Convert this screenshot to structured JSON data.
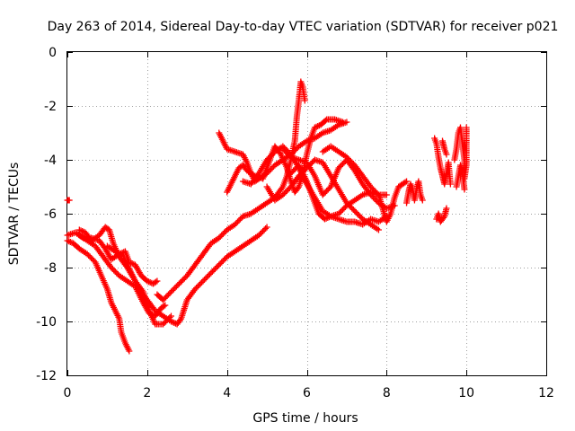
{
  "chart_data": {
    "type": "scatter",
    "title": "Day 263 of 2014, Sidereal Day-to-day VTEC variation (SDTVAR) for receiver p021",
    "xlabel": "GPS time / hours",
    "ylabel": "SDTVAR / TECUs",
    "xlim": [
      0,
      12
    ],
    "ylim": [
      -12,
      0
    ],
    "xticks": [
      0,
      2,
      4,
      6,
      8,
      10,
      12
    ],
    "yticks": [
      0,
      -2,
      -4,
      -6,
      -8,
      -10,
      -12
    ],
    "grid": true,
    "marker": "plus",
    "color": "#ff0000",
    "series": [
      {
        "points": [
          [
            0.0,
            -5.5
          ],
          [
            0.05,
            -5.5
          ]
        ]
      },
      {
        "points": [
          [
            0.0,
            -6.8
          ],
          [
            0.2,
            -6.7
          ],
          [
            0.4,
            -6.9
          ],
          [
            0.6,
            -6.9
          ],
          [
            0.8,
            -7.0
          ],
          [
            0.95,
            -7.3
          ],
          [
            1.1,
            -7.7
          ],
          [
            1.3,
            -7.5
          ],
          [
            1.45,
            -7.4
          ],
          [
            1.55,
            -7.8
          ],
          [
            1.7,
            -7.9
          ],
          [
            1.85,
            -8.3
          ],
          [
            2.0,
            -8.5
          ],
          [
            2.15,
            -8.6
          ],
          [
            2.25,
            -8.5
          ]
        ]
      },
      {
        "points": [
          [
            0.0,
            -7.0
          ],
          [
            0.15,
            -7.1
          ],
          [
            0.3,
            -7.3
          ],
          [
            0.5,
            -7.5
          ],
          [
            0.7,
            -7.8
          ],
          [
            0.85,
            -8.3
          ],
          [
            1.0,
            -8.8
          ],
          [
            1.1,
            -9.3
          ],
          [
            1.2,
            -9.6
          ],
          [
            1.3,
            -9.9
          ],
          [
            1.35,
            -10.4
          ],
          [
            1.45,
            -10.8
          ],
          [
            1.55,
            -11.1
          ]
        ]
      },
      {
        "points": [
          [
            0.3,
            -6.8
          ],
          [
            0.5,
            -7.0
          ],
          [
            0.7,
            -7.2
          ],
          [
            0.9,
            -7.6
          ],
          [
            1.1,
            -8.0
          ],
          [
            1.3,
            -8.3
          ],
          [
            1.5,
            -8.5
          ],
          [
            1.7,
            -8.7
          ],
          [
            1.9,
            -9.3
          ],
          [
            2.05,
            -9.7
          ],
          [
            2.2,
            -9.8
          ],
          [
            2.35,
            -9.5
          ],
          [
            2.45,
            -9.4
          ]
        ]
      },
      {
        "points": [
          [
            0.3,
            -6.6
          ],
          [
            0.45,
            -6.7
          ],
          [
            0.6,
            -7.0
          ],
          [
            0.8,
            -6.8
          ],
          [
            0.95,
            -6.5
          ],
          [
            1.05,
            -6.6
          ],
          [
            1.15,
            -7.1
          ],
          [
            1.3,
            -7.6
          ],
          [
            1.5,
            -8.0
          ],
          [
            1.7,
            -8.5
          ],
          [
            1.9,
            -8.9
          ],
          [
            2.05,
            -9.6
          ],
          [
            2.2,
            -10.1
          ],
          [
            2.4,
            -10.1
          ],
          [
            2.6,
            -9.8
          ]
        ]
      },
      {
        "points": [
          [
            1.0,
            -7.2
          ],
          [
            1.2,
            -7.4
          ],
          [
            1.4,
            -7.6
          ],
          [
            1.6,
            -8.2
          ],
          [
            1.8,
            -8.8
          ],
          [
            2.0,
            -9.2
          ],
          [
            2.2,
            -9.6
          ],
          [
            2.4,
            -9.8
          ],
          [
            2.6,
            -10.0
          ],
          [
            2.75,
            -10.1
          ],
          [
            2.85,
            -9.9
          ],
          [
            3.0,
            -9.2
          ],
          [
            3.2,
            -8.8
          ],
          [
            3.4,
            -8.5
          ],
          [
            3.6,
            -8.2
          ],
          [
            3.8,
            -7.9
          ],
          [
            4.0,
            -7.6
          ],
          [
            4.2,
            -7.4
          ],
          [
            4.4,
            -7.2
          ],
          [
            4.6,
            -7.0
          ],
          [
            4.8,
            -6.8
          ],
          [
            5.0,
            -6.5
          ]
        ]
      },
      {
        "points": [
          [
            2.25,
            -9.0
          ],
          [
            2.4,
            -9.2
          ],
          [
            2.6,
            -8.9
          ],
          [
            2.8,
            -8.6
          ],
          [
            3.0,
            -8.3
          ],
          [
            3.2,
            -7.9
          ],
          [
            3.4,
            -7.5
          ],
          [
            3.6,
            -7.1
          ],
          [
            3.8,
            -6.9
          ],
          [
            4.0,
            -6.6
          ],
          [
            4.2,
            -6.4
          ],
          [
            4.4,
            -6.1
          ],
          [
            4.6,
            -6.0
          ],
          [
            4.8,
            -5.8
          ],
          [
            5.0,
            -5.6
          ],
          [
            5.2,
            -5.4
          ],
          [
            5.4,
            -5.0
          ],
          [
            5.5,
            -4.6
          ],
          [
            5.6,
            -4.0
          ],
          [
            5.7,
            -3.3
          ],
          [
            5.75,
            -2.4
          ],
          [
            5.8,
            -1.8
          ],
          [
            5.85,
            -1.1
          ],
          [
            5.9,
            -1.3
          ],
          [
            5.95,
            -1.8
          ]
        ]
      },
      {
        "points": [
          [
            3.8,
            -3.0
          ],
          [
            3.9,
            -3.3
          ],
          [
            4.0,
            -3.6
          ],
          [
            4.2,
            -3.7
          ],
          [
            4.4,
            -3.8
          ],
          [
            4.5,
            -4.1
          ],
          [
            4.6,
            -4.5
          ],
          [
            4.7,
            -4.8
          ],
          [
            4.8,
            -4.7
          ],
          [
            5.0,
            -4.5
          ],
          [
            5.2,
            -4.2
          ],
          [
            5.4,
            -4.0
          ],
          [
            5.6,
            -3.8
          ],
          [
            5.8,
            -3.5
          ],
          [
            6.0,
            -3.3
          ],
          [
            6.2,
            -3.2
          ],
          [
            6.4,
            -3.0
          ],
          [
            6.6,
            -2.9
          ],
          [
            6.8,
            -2.7
          ],
          [
            7.0,
            -2.6
          ]
        ]
      },
      {
        "points": [
          [
            4.0,
            -5.2
          ],
          [
            4.1,
            -4.9
          ],
          [
            4.2,
            -4.6
          ],
          [
            4.3,
            -4.3
          ],
          [
            4.4,
            -4.2
          ],
          [
            4.5,
            -4.4
          ],
          [
            4.7,
            -4.6
          ],
          [
            4.9,
            -4.7
          ],
          [
            5.0,
            -4.3
          ],
          [
            5.1,
            -3.9
          ],
          [
            5.2,
            -3.5
          ],
          [
            5.35,
            -3.8
          ],
          [
            5.5,
            -4.3
          ],
          [
            5.6,
            -4.8
          ],
          [
            5.7,
            -5.2
          ],
          [
            5.8,
            -5.0
          ],
          [
            5.9,
            -4.5
          ],
          [
            6.0,
            -3.8
          ],
          [
            6.1,
            -3.2
          ],
          [
            6.2,
            -2.8
          ],
          [
            6.35,
            -2.7
          ],
          [
            6.5,
            -2.5
          ],
          [
            6.7,
            -2.5
          ],
          [
            6.9,
            -2.6
          ]
        ]
      },
      {
        "points": [
          [
            4.4,
            -4.8
          ],
          [
            4.6,
            -4.9
          ],
          [
            4.8,
            -4.5
          ],
          [
            5.0,
            -4.0
          ],
          [
            5.2,
            -3.7
          ],
          [
            5.4,
            -3.5
          ],
          [
            5.6,
            -3.8
          ],
          [
            5.8,
            -4.3
          ],
          [
            6.0,
            -4.9
          ],
          [
            6.2,
            -5.4
          ],
          [
            6.4,
            -5.9
          ],
          [
            6.6,
            -6.1
          ],
          [
            6.8,
            -6.2
          ],
          [
            7.0,
            -6.3
          ],
          [
            7.2,
            -6.3
          ],
          [
            7.4,
            -6.4
          ],
          [
            7.6,
            -6.2
          ],
          [
            7.8,
            -6.3
          ],
          [
            8.0,
            -6.1
          ]
        ]
      },
      {
        "points": [
          [
            5.0,
            -5.0
          ],
          [
            5.2,
            -5.5
          ],
          [
            5.4,
            -5.3
          ],
          [
            5.6,
            -5.0
          ],
          [
            5.8,
            -4.6
          ],
          [
            6.0,
            -4.3
          ],
          [
            6.2,
            -4.0
          ],
          [
            6.4,
            -4.1
          ],
          [
            6.6,
            -4.6
          ],
          [
            6.8,
            -5.1
          ],
          [
            7.0,
            -5.6
          ],
          [
            7.2,
            -5.9
          ],
          [
            7.4,
            -6.2
          ],
          [
            7.6,
            -6.4
          ],
          [
            7.8,
            -6.6
          ]
        ]
      },
      {
        "points": [
          [
            5.6,
            -4.5
          ],
          [
            5.8,
            -4.2
          ],
          [
            6.0,
            -4.8
          ],
          [
            6.2,
            -5.6
          ],
          [
            6.3,
            -6.0
          ],
          [
            6.45,
            -6.2
          ],
          [
            6.6,
            -6.1
          ],
          [
            6.8,
            -6.0
          ],
          [
            7.0,
            -5.7
          ],
          [
            7.2,
            -5.5
          ],
          [
            7.4,
            -5.3
          ],
          [
            7.6,
            -5.2
          ],
          [
            7.8,
            -5.3
          ],
          [
            8.0,
            -5.3
          ]
        ]
      },
      {
        "points": [
          [
            5.4,
            -3.6
          ],
          [
            5.6,
            -3.9
          ],
          [
            5.8,
            -4.0
          ],
          [
            6.0,
            -4.1
          ],
          [
            6.2,
            -4.6
          ],
          [
            6.4,
            -5.3
          ],
          [
            6.6,
            -5.0
          ],
          [
            6.8,
            -4.3
          ],
          [
            7.0,
            -4.0
          ],
          [
            7.2,
            -4.4
          ],
          [
            7.4,
            -4.9
          ],
          [
            7.6,
            -5.3
          ],
          [
            7.8,
            -5.6
          ],
          [
            8.0,
            -5.8
          ],
          [
            8.2,
            -5.7
          ]
        ]
      },
      {
        "points": [
          [
            6.4,
            -3.7
          ],
          [
            6.6,
            -3.5
          ],
          [
            6.8,
            -3.7
          ],
          [
            7.0,
            -3.9
          ],
          [
            7.2,
            -4.2
          ],
          [
            7.4,
            -4.6
          ],
          [
            7.6,
            -5.0
          ],
          [
            7.8,
            -5.3
          ],
          [
            7.9,
            -5.8
          ],
          [
            8.0,
            -6.3
          ],
          [
            8.1,
            -6.0
          ],
          [
            8.2,
            -5.4
          ],
          [
            8.3,
            -5.0
          ],
          [
            8.4,
            -4.9
          ],
          [
            8.5,
            -4.8
          ]
        ]
      },
      {
        "points": [
          [
            8.5,
            -5.6
          ],
          [
            8.55,
            -5.2
          ],
          [
            8.6,
            -4.9
          ],
          [
            8.65,
            -5.1
          ],
          [
            8.7,
            -5.5
          ],
          [
            8.75,
            -5.1
          ],
          [
            8.8,
            -4.8
          ],
          [
            8.85,
            -5.3
          ],
          [
            8.9,
            -5.5
          ]
        ]
      },
      {
        "points": [
          [
            9.2,
            -3.2
          ],
          [
            9.25,
            -3.4
          ],
          [
            9.3,
            -3.9
          ],
          [
            9.35,
            -4.3
          ],
          [
            9.4,
            -4.6
          ],
          [
            9.45,
            -4.9
          ],
          [
            9.5,
            -4.5
          ],
          [
            9.55,
            -4.1
          ],
          [
            9.6,
            -4.9
          ]
        ]
      },
      {
        "points": [
          [
            9.25,
            -6.2
          ],
          [
            9.3,
            -6.0
          ],
          [
            9.35,
            -6.3
          ],
          [
            9.45,
            -6.1
          ],
          [
            9.5,
            -5.8
          ]
        ]
      },
      {
        "points": [
          [
            9.4,
            -3.3
          ],
          [
            9.45,
            -3.6
          ],
          [
            9.5,
            -3.8
          ]
        ]
      },
      {
        "points": [
          [
            9.7,
            -4.0
          ],
          [
            9.75,
            -3.6
          ],
          [
            9.8,
            -3.0
          ],
          [
            9.85,
            -2.8
          ],
          [
            9.9,
            -3.4
          ],
          [
            9.95,
            -4.0
          ],
          [
            9.95,
            -4.7
          ],
          [
            10.0,
            -4.2
          ],
          [
            10.0,
            -3.5
          ],
          [
            10.0,
            -2.8
          ]
        ]
      },
      {
        "points": [
          [
            9.75,
            -5.0
          ],
          [
            9.8,
            -4.6
          ],
          [
            9.85,
            -4.2
          ],
          [
            9.9,
            -4.5
          ],
          [
            9.95,
            -5.1
          ]
        ]
      }
    ]
  }
}
